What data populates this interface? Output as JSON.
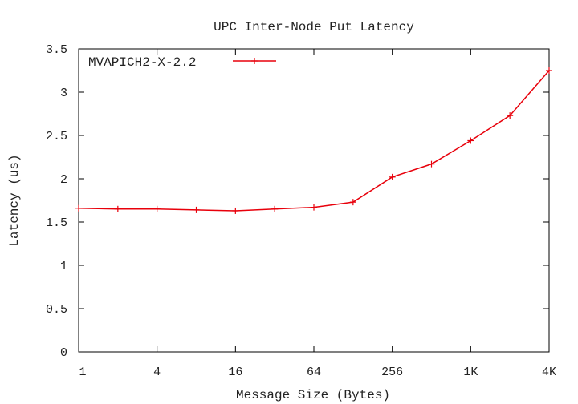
{
  "chart_data": {
    "type": "line",
    "title": "UPC Inter-Node Put Latency",
    "xlabel": "Message Size (Bytes)",
    "ylabel": "Latency (us)",
    "x_scale": "log2",
    "x": [
      1,
      2,
      4,
      8,
      16,
      32,
      64,
      128,
      256,
      512,
      1024,
      2048,
      4096
    ],
    "xticks": [
      {
        "value": 1,
        "label": "1"
      },
      {
        "value": 4,
        "label": "4"
      },
      {
        "value": 16,
        "label": "16"
      },
      {
        "value": 64,
        "label": "64"
      },
      {
        "value": 256,
        "label": "256"
      },
      {
        "value": 1024,
        "label": "1K"
      },
      {
        "value": 4096,
        "label": "4K"
      }
    ],
    "yticks": [
      {
        "value": 0,
        "label": "0"
      },
      {
        "value": 0.5,
        "label": "0.5"
      },
      {
        "value": 1,
        "label": "1"
      },
      {
        "value": 1.5,
        "label": "1.5"
      },
      {
        "value": 2,
        "label": "2"
      },
      {
        "value": 2.5,
        "label": "2.5"
      },
      {
        "value": 3,
        "label": "3"
      },
      {
        "value": 3.5,
        "label": "3.5"
      }
    ],
    "xlim": [
      1,
      4096
    ],
    "ylim": [
      0,
      3.5
    ],
    "grid": false,
    "legend_position": "top-left",
    "series": [
      {
        "name": "MVAPICH2-X-2.2",
        "color": "#e8000b",
        "marker": "plus",
        "values": [
          1.66,
          1.65,
          1.65,
          1.64,
          1.63,
          1.65,
          1.67,
          1.73,
          2.02,
          2.17,
          2.44,
          2.73,
          3.25
        ]
      }
    ]
  }
}
